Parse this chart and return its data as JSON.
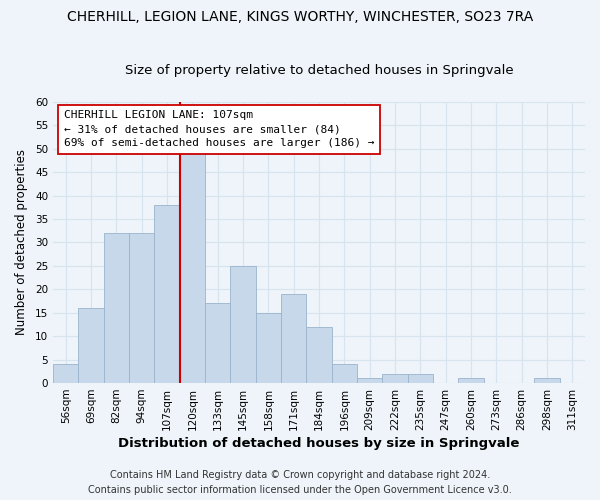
{
  "title": "CHERHILL, LEGION LANE, KINGS WORTHY, WINCHESTER, SO23 7RA",
  "subtitle": "Size of property relative to detached houses in Springvale",
  "xlabel": "Distribution of detached houses by size in Springvale",
  "ylabel": "Number of detached properties",
  "bar_color": "#c8d8eb",
  "bar_edge_color": "#9ab4cc",
  "bin_labels": [
    "56sqm",
    "69sqm",
    "82sqm",
    "94sqm",
    "107sqm",
    "120sqm",
    "133sqm",
    "145sqm",
    "158sqm",
    "171sqm",
    "184sqm",
    "196sqm",
    "209sqm",
    "222sqm",
    "235sqm",
    "247sqm",
    "260sqm",
    "273sqm",
    "286sqm",
    "298sqm",
    "311sqm"
  ],
  "bar_heights": [
    4,
    16,
    32,
    32,
    38,
    49,
    17,
    25,
    15,
    19,
    12,
    4,
    1,
    2,
    2,
    0,
    1,
    0,
    0,
    1,
    0
  ],
  "vline_x_index": 4,
  "vline_color": "#cc0000",
  "annotation_title": "CHERHILL LEGION LANE: 107sqm",
  "annotation_line1": "← 31% of detached houses are smaller (84)",
  "annotation_line2": "69% of semi-detached houses are larger (186) →",
  "annotation_box_color": "#ffffff",
  "annotation_box_edge": "#cc0000",
  "ylim": [
    0,
    60
  ],
  "yticks": [
    0,
    5,
    10,
    15,
    20,
    25,
    30,
    35,
    40,
    45,
    50,
    55,
    60
  ],
  "grid_color": "#d8e4ed",
  "footer_line1": "Contains HM Land Registry data © Crown copyright and database right 2024.",
  "footer_line2": "Contains public sector information licensed under the Open Government Licence v3.0.",
  "background_color": "#eef4f9",
  "plot_bg_color": "#eef4f9",
  "title_fontsize": 10,
  "subtitle_fontsize": 9.5,
  "xlabel_fontsize": 9.5,
  "ylabel_fontsize": 8.5,
  "tick_fontsize": 7.5,
  "footer_fontsize": 7,
  "annotation_fontsize": 8
}
